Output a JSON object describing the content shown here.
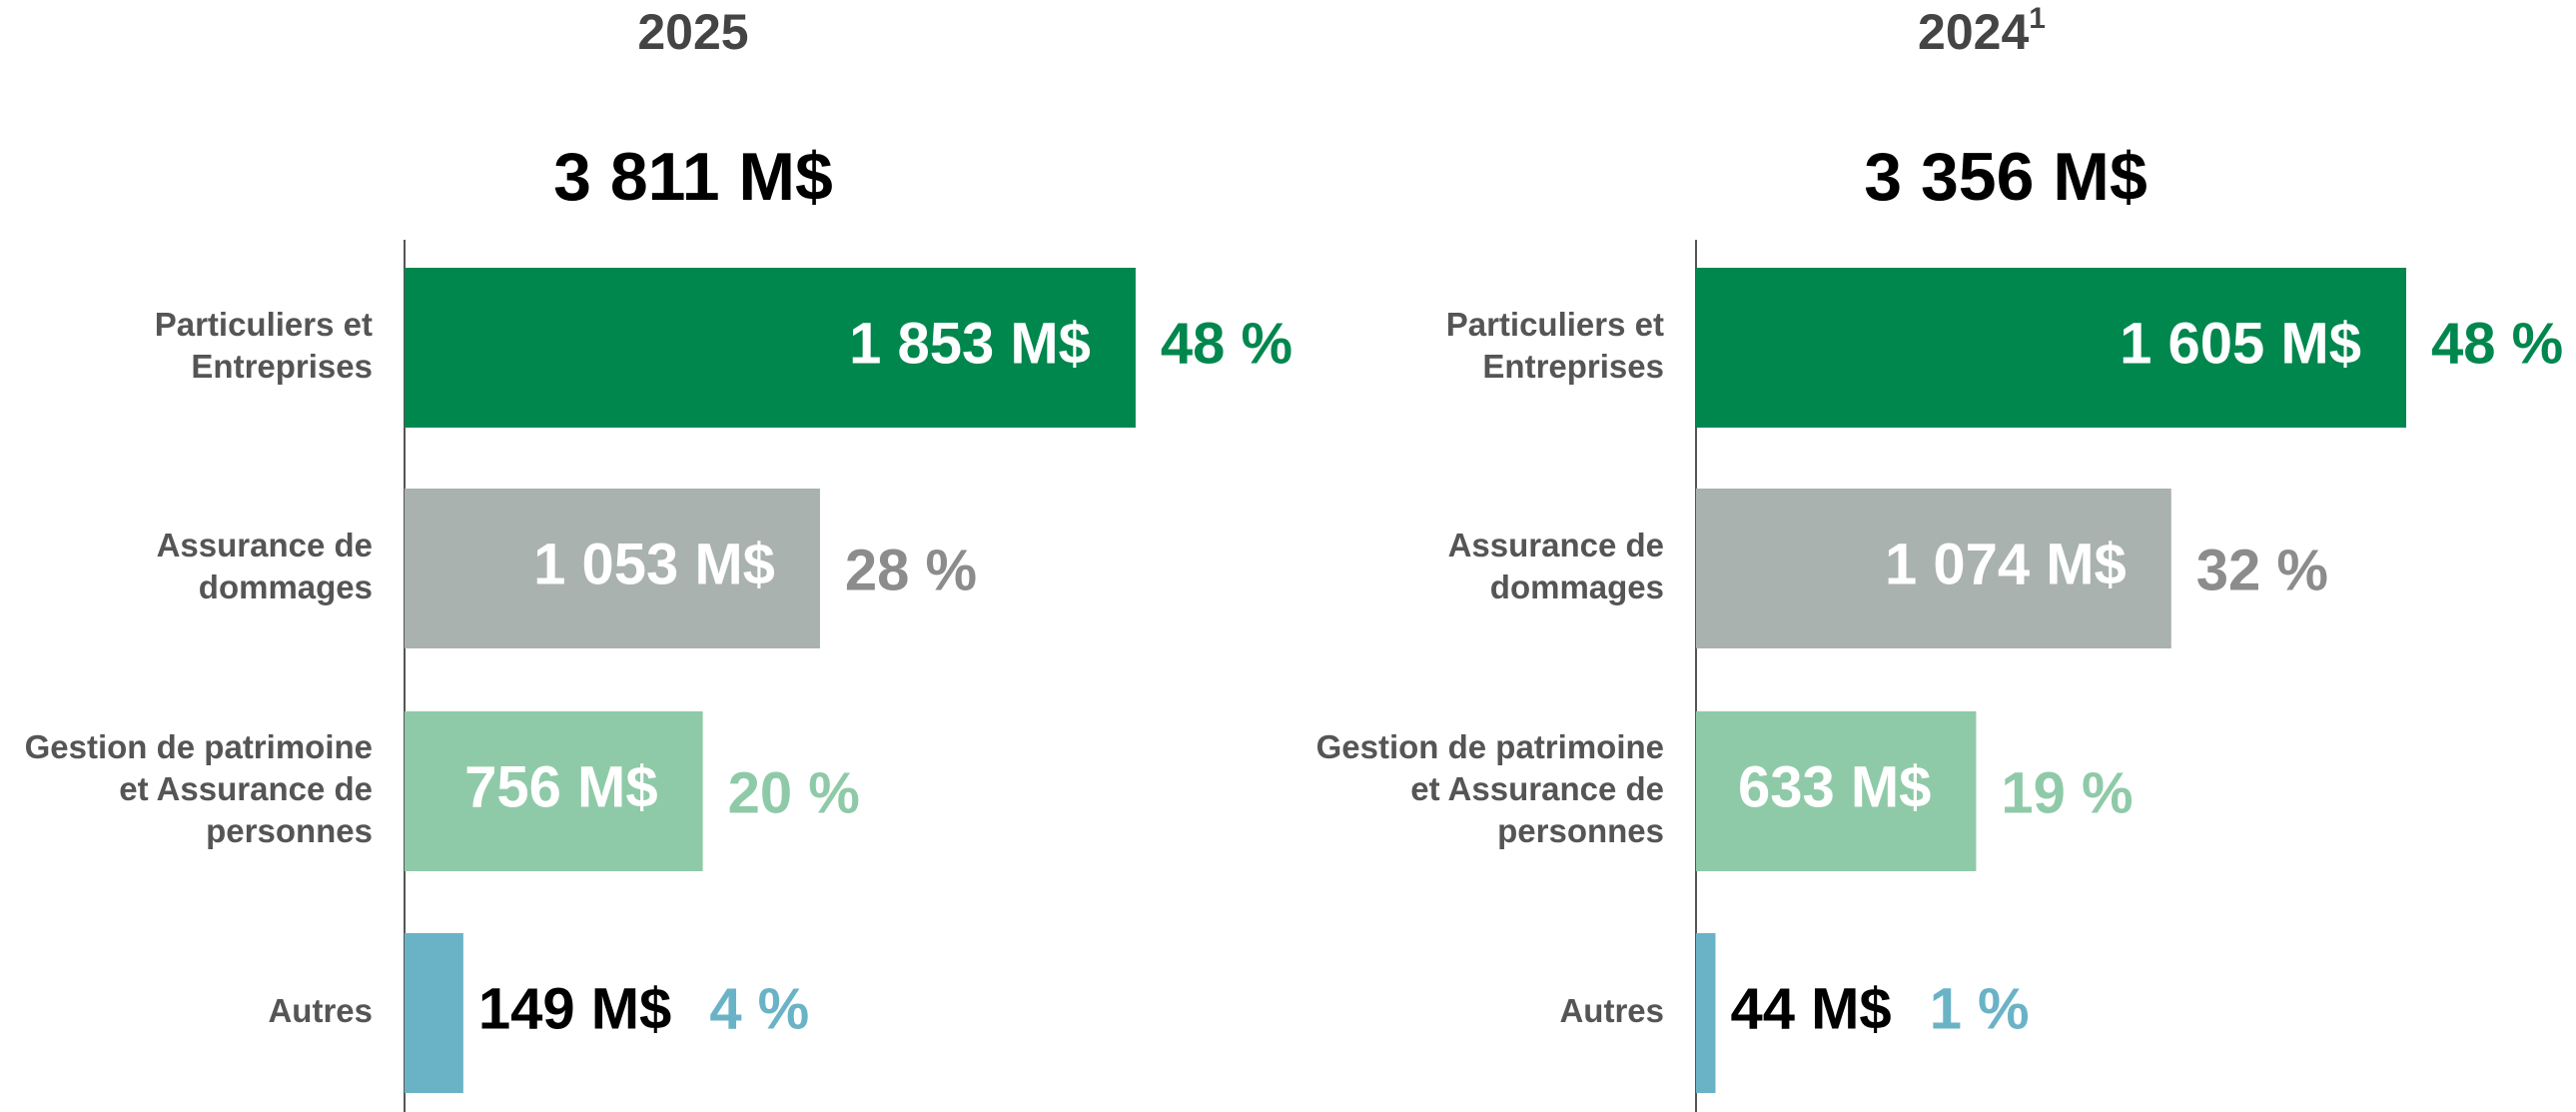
{
  "chart_data": [
    {
      "type": "bar",
      "title": "2025",
      "subtitle": "3 811 M$",
      "categories": [
        "Particuliers et\nEntreprises",
        "Assurance de\ndommages",
        "Gestion de patrimoine\net Assurance de\npersonnes",
        "Autres"
      ],
      "values": [
        1853,
        1053,
        756,
        149
      ],
      "value_labels": [
        "1 853 M$",
        "1 053 M$",
        "756 M$",
        "149 M$"
      ],
      "share_labels": [
        "48 %",
        "28 %",
        "20 %",
        "4 %"
      ],
      "colors": [
        "#00874e",
        "#a9b2ae",
        "#8fcaa8",
        "#6ab3c6"
      ],
      "share_colors": [
        "#00874e",
        "#8c8c8c",
        "#8fcaa8",
        "#6ab3c6"
      ],
      "xlim": [
        0,
        2000
      ]
    },
    {
      "type": "bar",
      "title": "2024",
      "title_note": "1",
      "subtitle": "3 356 M$",
      "categories": [
        "Particuliers et\nEntreprises",
        "Assurance de\ndommages",
        "Gestion de patrimoine\net Assurance de\npersonnes",
        "Autres"
      ],
      "values": [
        1605,
        1074,
        633,
        44
      ],
      "value_labels": [
        "1 605 M$",
        "1 074 M$",
        "633 M$",
        "44 M$"
      ],
      "share_labels": [
        "48 %",
        "32 %",
        "19 %",
        "1 %"
      ],
      "colors": [
        "#00874e",
        "#a9b2ae",
        "#8fcaa8",
        "#6ab3c6"
      ],
      "share_colors": [
        "#00874e",
        "#8c8c8c",
        "#8fcaa8",
        "#6ab3c6"
      ],
      "xlim": [
        0,
        2000
      ]
    }
  ]
}
